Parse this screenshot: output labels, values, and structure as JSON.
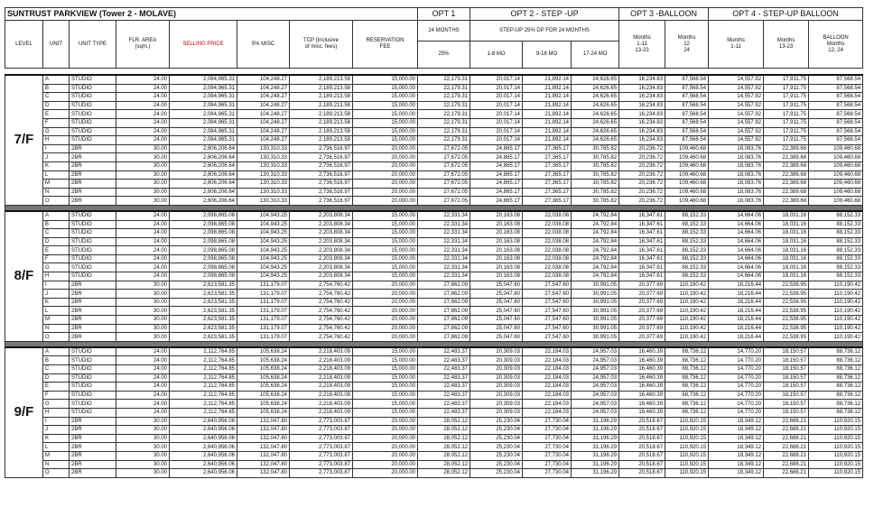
{
  "title": "SUNTRUST PARKVIEW  (Tower 2 - MOLAVE)",
  "option_groups": [
    "OPT 1",
    "OPT 2 - STEP -UP",
    "OPT 3 -BALLOON",
    "OPT 4 - STEP-UP BALLOON"
  ],
  "columns": [
    "LEVEL",
    "UNIT",
    "UNIT TYPE",
    "FLR. AREA\n(sqm.)",
    "SELLING PRICE",
    "5% MISC",
    "TCP (Inclusive\nof misc. fees)",
    "RESERVATION\nFEE"
  ],
  "opt1_header": "24 MONTHS",
  "opt2_header": "STEP-UP 25% DP FOR 24 MONTHS",
  "subcolumns": [
    "25%",
    "1-8 MO",
    "9-16 MO",
    "17-24 MO"
  ],
  "opt3_columns": [
    "Months\n1-11\n13-23",
    "Months\n12\n24"
  ],
  "opt4_columns": [
    "Months\n1-11",
    "Months\n13-23",
    "BALLOON\nMonths\n12, 24"
  ],
  "floors": [
    {
      "level": "7/F",
      "rows": [
        [
          "A",
          "STUDIO",
          "24.00",
          "2,084,965.31",
          "104,248.27",
          "2,189,213.58",
          "15,000.00",
          "22,179.31",
          "20,017.14",
          "21,892.14",
          "24,626.65",
          "16,234.83",
          "87,568.54",
          "14,557.92",
          "17,911.75",
          "87,568.54"
        ],
        [
          "B",
          "STUDIO",
          "24.00",
          "2,084,965.31",
          "104,248.27",
          "2,189,213.58",
          "15,000.00",
          "22,179.31",
          "20,017.14",
          "21,892.14",
          "24,626.65",
          "16,234.83",
          "87,568.54",
          "14,557.92",
          "17,911.75",
          "87,568.54"
        ],
        [
          "C",
          "STUDIO",
          "24.00",
          "2,084,965.31",
          "104,248.27",
          "2,189,213.58",
          "15,000.00",
          "22,179.31",
          "20,017.14",
          "21,892.14",
          "24,626.65",
          "16,234.83",
          "87,568.54",
          "14,557.92",
          "17,911.75",
          "87,568.54"
        ],
        [
          "D",
          "STUDIO",
          "24.00",
          "2,084,965.31",
          "104,248.27",
          "2,189,213.58",
          "15,000.00",
          "22,179.31",
          "20,017.14",
          "21,892.14",
          "24,626.65",
          "16,234.83",
          "87,568.54",
          "14,557.92",
          "17,911.75",
          "87,568.54"
        ],
        [
          "E",
          "STUDIO",
          "24.00",
          "2,084,965.31",
          "104,248.27",
          "2,189,213.58",
          "15,000.00",
          "22,179.31",
          "20,017.14",
          "21,892.14",
          "24,626.65",
          "16,234.83",
          "87,568.54",
          "14,557.92",
          "17,911.75",
          "87,568.54"
        ],
        [
          "F",
          "STUDIO",
          "24.00",
          "2,084,965.31",
          "104,248.27",
          "2,189,213.58",
          "15,000.00",
          "22,179.31",
          "20,017.14",
          "21,892.14",
          "24,626.65",
          "16,234.83",
          "87,568.54",
          "14,557.92",
          "17,911.75",
          "87,568.54"
        ],
        [
          "G",
          "STUDIO",
          "24.00",
          "2,084,965.31",
          "104,248.27",
          "2,189,213.58",
          "15,000.00",
          "22,179.31",
          "20,017.14",
          "21,892.14",
          "24,626.65",
          "16,234.83",
          "87,568.54",
          "14,557.92",
          "17,911.75",
          "87,568.54"
        ],
        [
          "H",
          "STUDIO",
          "24.00",
          "2,084,965.31",
          "104,248.27",
          "2,189,213.58",
          "15,000.00",
          "22,179.31",
          "20,017.14",
          "21,892.14",
          "24,626.65",
          "16,234.83",
          "87,568.54",
          "14,557.92",
          "17,911.75",
          "87,568.54"
        ],
        [
          "I",
          "2BR",
          "30.00",
          "2,606,206.64",
          "130,310.33",
          "2,736,516.97",
          "20,000.00",
          "27,672.05",
          "24,865.17",
          "27,365.17",
          "30,785.82",
          "20,236.72",
          "109,460.68",
          "18,083.76",
          "22,389.68",
          "109,460.68"
        ],
        [
          "J",
          "2BR",
          "30.00",
          "2,606,206.64",
          "130,310.33",
          "2,736,516.97",
          "20,000.00",
          "27,672.05",
          "24,865.17",
          "27,365.17",
          "30,785.82",
          "20,236.72",
          "109,460.68",
          "18,083.76",
          "22,389.68",
          "109,460.68"
        ],
        [
          "K",
          "2BR",
          "30.00",
          "2,606,206.64",
          "130,310.33",
          "2,736,516.97",
          "20,000.00",
          "27,672.05",
          "24,865.17",
          "27,365.17",
          "30,785.82",
          "20,236.72",
          "109,460.68",
          "18,083.76",
          "22,389.68",
          "109,460.68"
        ],
        [
          "L",
          "2BR",
          "30.00",
          "2,606,206.64",
          "130,310.33",
          "2,736,516.97",
          "20,000.00",
          "27,672.05",
          "24,865.17",
          "27,365.17",
          "30,785.82",
          "20,236.72",
          "109,460.68",
          "18,083.76",
          "22,389.68",
          "109,460.68"
        ],
        [
          "M",
          "2BR",
          "30.00",
          "2,606,206.64",
          "130,310.33",
          "2,736,516.97",
          "20,000.00",
          "27,672.05",
          "24,865.17",
          "27,365.17",
          "30,785.82",
          "20,236.72",
          "109,460.68",
          "18,083.76",
          "22,389.68",
          "109,460.68"
        ],
        [
          "N",
          "2BR",
          "30.00",
          "2,606,206.64",
          "130,310.33",
          "2,736,516.97",
          "20,000.00",
          "27,672.05",
          "24,865.17",
          "27,365.17",
          "30,785.82",
          "20,236.72",
          "109,460.68",
          "18,083.76",
          "22,389.68",
          "109,460.68"
        ],
        [
          "O",
          "2BR",
          "30.00",
          "2,606,206.64",
          "130,310.33",
          "2,736,516.97",
          "20,000.00",
          "27,672.05",
          "24,865.17",
          "27,365.17",
          "30,785.82",
          "20,236.72",
          "109,460.68",
          "18,083.76",
          "22,389.68",
          "109,460.68"
        ]
      ]
    },
    {
      "level": "8/F",
      "rows": [
        [
          "A",
          "STUDIO",
          "24.00",
          "2,098,865.08",
          "104,943.25",
          "2,203,808.34",
          "15,000.00",
          "22,331.34",
          "20,163.08",
          "22,038.08",
          "24,792.84",
          "16,347.61",
          "88,152.33",
          "14,664.06",
          "18,031.16",
          "88,152.33"
        ],
        [
          "B",
          "STUDIO",
          "24.00",
          "2,098,865.08",
          "104,943.25",
          "2,203,808.34",
          "15,000.00",
          "22,331.34",
          "20,163.08",
          "22,038.08",
          "24,792.84",
          "16,347.61",
          "88,152.33",
          "14,664.06",
          "18,031.16",
          "88,152.33"
        ],
        [
          "C",
          "STUDIO",
          "24.00",
          "2,098,865.08",
          "104,943.25",
          "2,203,808.34",
          "15,000.00",
          "22,331.34",
          "20,163.08",
          "22,038.08",
          "24,792.84",
          "16,347.61",
          "88,152.33",
          "14,664.06",
          "18,031.16",
          "88,152.33"
        ],
        [
          "D",
          "STUDIO",
          "24.00",
          "2,098,865.08",
          "104,943.25",
          "2,203,808.34",
          "15,000.00",
          "22,331.34",
          "20,163.08",
          "22,038.08",
          "24,792.84",
          "16,347.61",
          "88,152.33",
          "14,664.06",
          "18,031.16",
          "88,152.33"
        ],
        [
          "E",
          "STUDIO",
          "24.00",
          "2,098,865.08",
          "104,943.25",
          "2,203,808.34",
          "15,000.00",
          "22,331.34",
          "20,163.08",
          "22,038.08",
          "24,792.84",
          "16,347.61",
          "88,152.33",
          "14,664.06",
          "18,031.16",
          "88,152.33"
        ],
        [
          "F",
          "STUDIO",
          "24.00",
          "2,098,865.08",
          "104,943.25",
          "2,203,808.34",
          "15,000.00",
          "22,331.34",
          "20,163.08",
          "22,038.08",
          "24,792.84",
          "16,347.61",
          "88,152.33",
          "14,664.06",
          "18,031.16",
          "88,152.33"
        ],
        [
          "G",
          "STUDIO",
          "24.00",
          "2,098,865.08",
          "104,943.25",
          "2,203,808.34",
          "15,000.00",
          "22,331.34",
          "20,163.08",
          "22,038.08",
          "24,792.84",
          "16,347.61",
          "88,152.33",
          "14,664.06",
          "18,031.16",
          "88,152.33"
        ],
        [
          "H",
          "STUDIO",
          "24.00",
          "2,098,865.08",
          "104,943.25",
          "2,203,808.34",
          "15,000.00",
          "22,331.34",
          "20,163.08",
          "22,038.08",
          "24,792.84",
          "16,347.61",
          "88,152.33",
          "14,664.06",
          "18,031.16",
          "88,152.33"
        ],
        [
          "I",
          "2BR",
          "30.00",
          "2,623,581.35",
          "131,179.07",
          "2,754,760.42",
          "20,000.00",
          "27,862.09",
          "25,047.60",
          "27,547.60",
          "30,991.05",
          "20,377.69",
          "110,190.42",
          "18,216.44",
          "22,538.95",
          "110,190.42"
        ],
        [
          "J",
          "2BR",
          "30.00",
          "2,623,581.35",
          "131,179.07",
          "2,754,760.42",
          "20,000.00",
          "27,862.09",
          "25,047.60",
          "27,547.60",
          "30,991.05",
          "20,377.69",
          "110,190.42",
          "18,216.44",
          "22,538.95",
          "110,190.42"
        ],
        [
          "K",
          "2BR",
          "30.00",
          "2,623,581.35",
          "131,179.07",
          "2,754,760.42",
          "20,000.00",
          "27,862.09",
          "25,047.60",
          "27,547.60",
          "30,991.05",
          "20,377.69",
          "110,190.42",
          "18,216.44",
          "22,538.95",
          "110,190.42"
        ],
        [
          "L",
          "2BR",
          "30.00",
          "2,623,581.35",
          "131,179.07",
          "2,754,760.42",
          "20,000.00",
          "27,862.09",
          "25,047.60",
          "27,547.60",
          "30,991.05",
          "20,377.69",
          "110,190.42",
          "18,216.44",
          "22,538.95",
          "110,190.42"
        ],
        [
          "M",
          "2BR",
          "30.00",
          "2,623,581.35",
          "131,179.07",
          "2,754,760.42",
          "20,000.00",
          "27,862.09",
          "25,047.60",
          "27,547.60",
          "30,991.05",
          "20,377.69",
          "110,190.42",
          "18,216.44",
          "22,538.95",
          "110,190.42"
        ],
        [
          "N",
          "2BR",
          "30.00",
          "2,623,581.35",
          "131,179.07",
          "2,754,760.42",
          "20,000.00",
          "27,862.09",
          "25,047.60",
          "27,547.60",
          "30,991.05",
          "20,377.69",
          "110,190.42",
          "18,216.44",
          "22,538.95",
          "110,190.42"
        ],
        [
          "O",
          "2BR",
          "30.00",
          "2,623,581.35",
          "131,179.07",
          "2,754,760.42",
          "20,000.00",
          "27,862.09",
          "25,047.60",
          "27,547.60",
          "30,991.05",
          "20,377.69",
          "110,190.42",
          "18,216.44",
          "22,538.95",
          "110,190.42"
        ]
      ]
    },
    {
      "level": "9/F",
      "rows": [
        [
          "A",
          "STUDIO",
          "24.00",
          "2,112,764.85",
          "105,638.24",
          "2,218,403.09",
          "15,000.00",
          "22,483.37",
          "20,309.03",
          "22,184.03",
          "24,957.03",
          "16,460.39",
          "88,736.12",
          "14,770.20",
          "18,150.57",
          "88,736.12"
        ],
        [
          "B",
          "STUDIO",
          "24.00",
          "2,112,764.85",
          "105,638.24",
          "2,218,403.09",
          "15,000.00",
          "22,483.37",
          "20,309.03",
          "22,184.03",
          "24,957.03",
          "16,460.39",
          "88,736.12",
          "14,770.20",
          "18,150.57",
          "88,736.12"
        ],
        [
          "C",
          "STUDIO",
          "24.00",
          "2,112,764.85",
          "105,638.24",
          "2,218,403.09",
          "15,000.00",
          "22,483.37",
          "20,309.03",
          "22,184.03",
          "24,957.03",
          "16,460.39",
          "88,736.12",
          "14,770.20",
          "18,150.57",
          "88,736.12"
        ],
        [
          "D",
          "STUDIO",
          "24.00",
          "2,112,764.85",
          "105,638.24",
          "2,218,403.09",
          "15,000.00",
          "22,483.37",
          "20,309.03",
          "22,184.03",
          "24,957.03",
          "16,460.39",
          "88,736.12",
          "14,770.20",
          "18,150.57",
          "88,736.12"
        ],
        [
          "E",
          "STUDIO",
          "24.00",
          "2,112,764.85",
          "105,638.24",
          "2,218,403.09",
          "15,000.00",
          "22,483.37",
          "20,309.03",
          "22,184.03",
          "24,957.03",
          "16,460.39",
          "88,736.12",
          "14,770.20",
          "18,150.57",
          "88,736.12"
        ],
        [
          "F",
          "STUDIO",
          "24.00",
          "2,112,764.85",
          "105,638.24",
          "2,218,403.09",
          "15,000.00",
          "22,483.37",
          "20,309.03",
          "22,184.03",
          "24,957.03",
          "16,460.39",
          "88,736.12",
          "14,770.20",
          "18,150.57",
          "88,736.12"
        ],
        [
          "G",
          "STUDIO",
          "24.00",
          "2,112,764.85",
          "105,638.24",
          "2,218,403.09",
          "15,000.00",
          "22,483.37",
          "20,309.03",
          "22,184.03",
          "24,957.03",
          "16,460.39",
          "88,736.12",
          "14,770.20",
          "18,150.57",
          "88,736.12"
        ],
        [
          "H",
          "STUDIO",
          "24.00",
          "2,112,764.85",
          "105,638.24",
          "2,218,403.09",
          "15,000.00",
          "22,483.37",
          "20,309.03",
          "22,184.03",
          "24,957.03",
          "16,460.39",
          "88,736.12",
          "14,770.20",
          "18,150.57",
          "88,736.12"
        ],
        [
          "I",
          "2BR",
          "30.00",
          "2,640,956.06",
          "132,047.80",
          "2,773,003.87",
          "20,000.00",
          "28,052.12",
          "25,230.04",
          "27,730.04",
          "31,196.29",
          "20,518.67",
          "110,920.15",
          "18,349.12",
          "22,688.21",
          "110,920.15"
        ],
        [
          "J",
          "2BR",
          "30.00",
          "2,640,956.06",
          "132,047.80",
          "2,773,003.87",
          "20,000.00",
          "28,052.12",
          "25,230.04",
          "27,730.04",
          "31,196.29",
          "20,518.67",
          "110,920.15",
          "18,349.12",
          "22,688.21",
          "110,920.15"
        ],
        [
          "K",
          "2BR",
          "30.00",
          "2,640,956.06",
          "132,047.80",
          "2,773,003.87",
          "20,000.00",
          "28,052.12",
          "25,230.04",
          "27,730.04",
          "31,196.29",
          "20,518.67",
          "110,920.15",
          "18,349.12",
          "22,688.21",
          "110,920.15"
        ],
        [
          "L",
          "2BR",
          "30.00",
          "2,640,956.06",
          "132,047.80",
          "2,773,003.87",
          "20,000.00",
          "28,052.12",
          "25,230.04",
          "27,730.04",
          "31,196.29",
          "20,518.67",
          "110,920.15",
          "18,349.12",
          "22,688.21",
          "110,920.15"
        ],
        [
          "M",
          "2BR",
          "30.00",
          "2,640,956.06",
          "132,047.80",
          "2,773,003.87",
          "20,000.00",
          "28,052.12",
          "25,230.04",
          "27,730.04",
          "31,196.29",
          "20,518.67",
          "110,920.15",
          "18,349.12",
          "22,688.21",
          "110,920.15"
        ],
        [
          "N",
          "2BR",
          "30.00",
          "2,640,956.06",
          "132,047.80",
          "2,773,003.87",
          "20,000.00",
          "28,052.12",
          "25,230.04",
          "27,730.04",
          "31,196.29",
          "20,518.67",
          "110,920.15",
          "18,349.12",
          "22,688.21",
          "110,920.15"
        ],
        [
          "O",
          "2BR",
          "30.00",
          "2,640,956.06",
          "132,047.80",
          "2,773,003.87",
          "20,000.00",
          "28,052.12",
          "25,230.04",
          "27,730.04",
          "31,196.29",
          "20,518.67",
          "110,920.15",
          "18,349.12",
          "22,688.21",
          "110,920.15"
        ]
      ]
    }
  ]
}
